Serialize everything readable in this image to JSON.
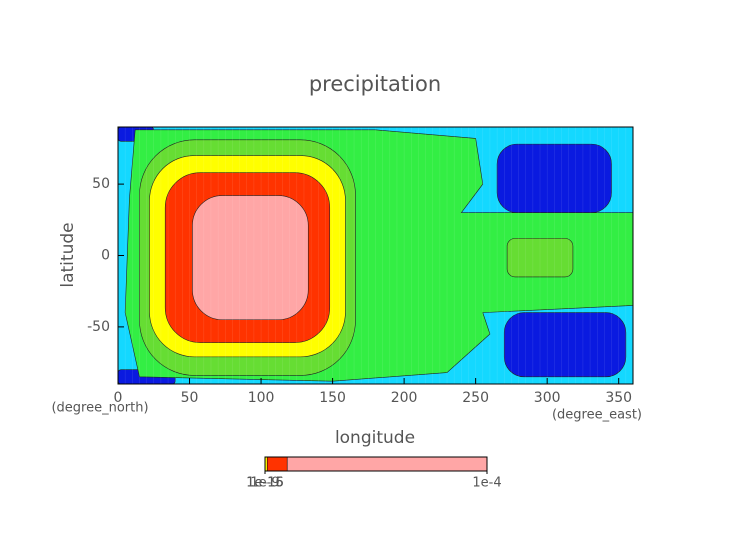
{
  "chart_data": {
    "type": "contour",
    "title": "precipitation",
    "x_label": "longitude",
    "y_label": "latitude",
    "x_units": "(degree_east)",
    "y_units": "(degree_north)",
    "xlim": [
      0,
      360
    ],
    "ylim": [
      -90,
      90
    ],
    "xticks": [
      0,
      50,
      100,
      150,
      200,
      250,
      300,
      350
    ],
    "yticks": [
      -50,
      0,
      50
    ],
    "colorbar": {
      "lim": [
        0,
        0.0001
      ],
      "levels": [
        1e-16,
        1e-15,
        1e-12,
        1e-09,
        1e-07,
        1e-06,
        1e-05,
        0.0001
      ],
      "colors": [
        "#0a1ae0",
        "#14d8ff",
        "#33ee44",
        "#66dd33",
        "#ffff00",
        "#ff3300",
        "#ffa6a6"
      ],
      "ticks": [
        {
          "value": 1e-16,
          "label": "1e-16"
        },
        {
          "value": 1e-15,
          "label": "1e-15"
        },
        {
          "value": 1e-09,
          "label": "1e-9"
        },
        {
          "value": 0.0001,
          "label": "1e-4"
        }
      ]
    }
  }
}
